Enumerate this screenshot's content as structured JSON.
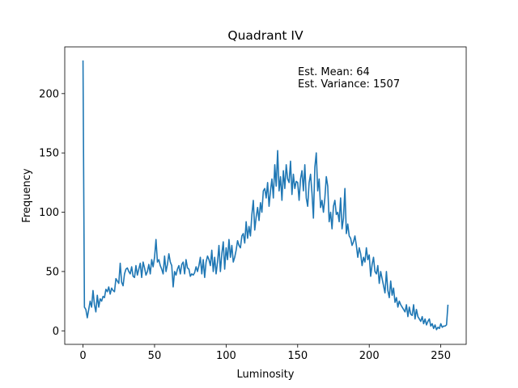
{
  "chart_data": {
    "type": "line",
    "title": "Quadrant IV",
    "xlabel": "Luminosity",
    "ylabel": "Frequency",
    "annotations": [
      "Est. Mean: 64",
      "Est. Variance: 1507"
    ],
    "x": [
      0,
      1,
      2,
      3,
      4,
      5,
      6,
      7,
      8,
      9,
      10,
      11,
      12,
      13,
      14,
      15,
      16,
      17,
      18,
      19,
      20,
      21,
      22,
      23,
      24,
      25,
      26,
      27,
      28,
      29,
      30,
      31,
      32,
      33,
      34,
      35,
      36,
      37,
      38,
      39,
      40,
      41,
      42,
      43,
      44,
      45,
      46,
      47,
      48,
      49,
      50,
      51,
      52,
      53,
      54,
      55,
      56,
      57,
      58,
      59,
      60,
      61,
      62,
      63,
      64,
      65,
      66,
      67,
      68,
      69,
      70,
      71,
      72,
      73,
      74,
      75,
      76,
      77,
      78,
      79,
      80,
      81,
      82,
      83,
      84,
      85,
      86,
      87,
      88,
      89,
      90,
      91,
      92,
      93,
      94,
      95,
      96,
      97,
      98,
      99,
      100,
      101,
      102,
      103,
      104,
      105,
      106,
      107,
      108,
      109,
      110,
      111,
      112,
      113,
      114,
      115,
      116,
      117,
      118,
      119,
      120,
      121,
      122,
      123,
      124,
      125,
      126,
      127,
      128,
      129,
      130,
      131,
      132,
      133,
      134,
      135,
      136,
      137,
      138,
      139,
      140,
      141,
      142,
      143,
      144,
      145,
      146,
      147,
      148,
      149,
      150,
      151,
      152,
      153,
      154,
      155,
      156,
      157,
      158,
      159,
      160,
      161,
      162,
      163,
      164,
      165,
      166,
      167,
      168,
      169,
      170,
      171,
      172,
      173,
      174,
      175,
      176,
      177,
      178,
      179,
      180,
      181,
      182,
      183,
      184,
      185,
      186,
      187,
      188,
      189,
      190,
      191,
      192,
      193,
      194,
      195,
      196,
      197,
      198,
      199,
      200,
      201,
      202,
      203,
      204,
      205,
      206,
      207,
      208,
      209,
      210,
      211,
      212,
      213,
      214,
      215,
      216,
      217,
      218,
      219,
      220,
      221,
      222,
      223,
      224,
      225,
      226,
      227,
      228,
      229,
      230,
      231,
      232,
      233,
      234,
      235,
      236,
      237,
      238,
      239,
      240,
      241,
      242,
      243,
      244,
      245,
      246,
      247,
      248,
      249,
      250,
      251,
      252,
      253,
      254,
      255
    ],
    "series": [
      {
        "name": "Frequency",
        "color": "#1f77b4",
        "values": [
          228,
          20,
          18,
          11,
          18,
          25,
          20,
          34,
          22,
          16,
          30,
          20,
          27,
          25,
          29,
          28,
          35,
          33,
          37,
          31,
          36,
          34,
          33,
          44,
          42,
          40,
          57,
          41,
          38,
          48,
          52,
          53,
          50,
          48,
          54,
          46,
          45,
          55,
          47,
          52,
          57,
          45,
          58,
          53,
          47,
          50,
          56,
          48,
          60,
          54,
          62,
          77,
          58,
          60,
          55,
          52,
          48,
          63,
          50,
          56,
          65,
          58,
          55,
          37,
          50,
          47,
          52,
          55,
          48,
          56,
          58,
          48,
          60,
          53,
          52,
          46,
          48,
          47,
          49,
          54,
          50,
          55,
          62,
          48,
          60,
          45,
          58,
          63,
          60,
          55,
          68,
          50,
          62,
          48,
          58,
          72,
          50,
          65,
          75,
          52,
          70,
          60,
          77,
          62,
          72,
          58,
          62,
          68,
          76,
          72,
          70,
          80,
          82,
          74,
          92,
          78,
          88,
          80,
          98,
          110,
          85,
          96,
          104,
          93,
          108,
          100,
          118,
          120,
          112,
          125,
          105,
          118,
          128,
          112,
          140,
          122,
          152,
          118,
          130,
          110,
          135,
          120,
          140,
          128,
          125,
          143,
          115,
          132,
          120,
          126,
          125,
          110,
          128,
          135,
          118,
          140,
          112,
          105,
          125,
          132,
          116,
          95,
          138,
          150,
          118,
          128,
          104,
          110,
          100,
          112,
          130,
          122,
          92,
          100,
          86,
          105,
          110,
          98,
          100,
          92,
          112,
          86,
          95,
          120,
          82,
          90,
          80,
          78,
          72,
          75,
          80,
          72,
          62,
          70,
          65,
          55,
          62,
          58,
          70,
          60,
          64,
          46,
          56,
          62,
          50,
          48,
          55,
          40,
          50,
          44,
          38,
          32,
          50,
          34,
          28,
          42,
          30,
          36,
          24,
          28,
          20,
          25,
          22,
          20,
          18,
          16,
          22,
          12,
          20,
          14,
          13,
          22,
          10,
          18,
          12,
          10,
          8,
          12,
          6,
          10,
          5,
          8,
          10,
          4,
          6,
          2,
          5,
          1,
          3,
          2,
          6,
          3,
          4,
          4,
          5,
          22
        ]
      }
    ],
    "xlim": [
      -12.75,
      267.75
    ],
    "ylim": [
      -11.4,
      239.4
    ],
    "xticks": [
      0,
      50,
      100,
      150,
      200,
      250
    ],
    "yticks": [
      0,
      50,
      100,
      150,
      200
    ],
    "grid": false
  }
}
